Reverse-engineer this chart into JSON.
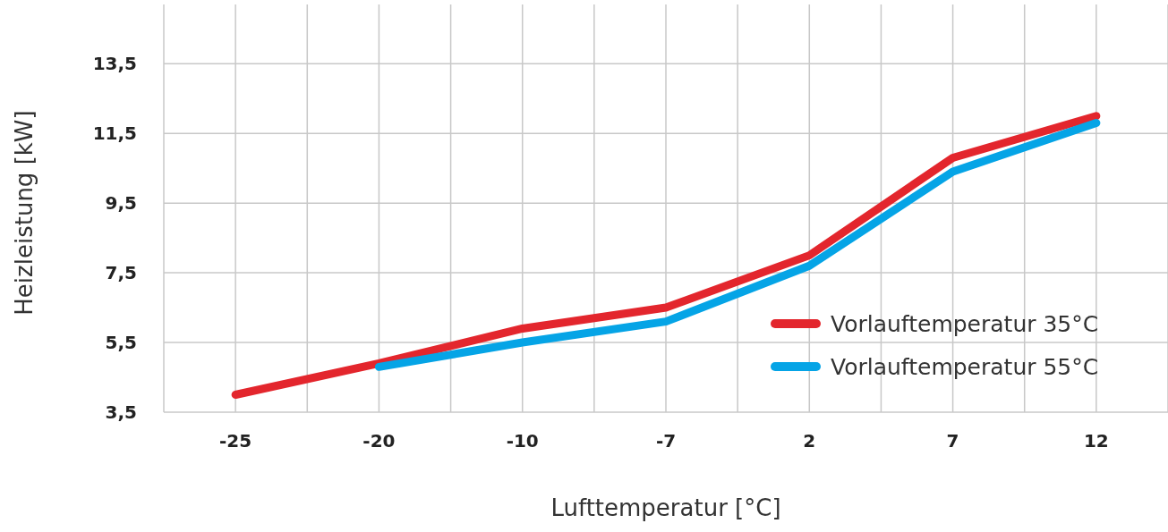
{
  "chart_data": {
    "type": "line",
    "xlabel": "Lufttemperatur [°C]",
    "ylabel": "Heizleistung [kW]",
    "categories": [
      "-25",
      "-20",
      "-10",
      "-7",
      "2",
      "7",
      "12"
    ],
    "series": [
      {
        "name": "Vorlauftemperatur 35°C",
        "color": "#e3262d",
        "values": [
          4.0,
          4.9,
          5.9,
          6.5,
          8.0,
          10.8,
          12.0
        ]
      },
      {
        "name": "Vorlauftemperatur 55°C",
        "color": "#05a4e6",
        "values": [
          null,
          4.8,
          5.5,
          6.1,
          7.7,
          10.4,
          11.8
        ]
      }
    ],
    "ylim": [
      3.5,
      15.2
    ],
    "yticks": [
      {
        "value": 3.5,
        "label": "3,5"
      },
      {
        "value": 5.5,
        "label": "5,5"
      },
      {
        "value": 7.5,
        "label": "7,5"
      },
      {
        "value": 9.5,
        "label": "9,5"
      },
      {
        "value": 11.5,
        "label": "11,5"
      },
      {
        "value": 13.5,
        "label": "13,5"
      }
    ],
    "grid": true,
    "legend": "right",
    "marker": "none",
    "line_style": "solid"
  }
}
